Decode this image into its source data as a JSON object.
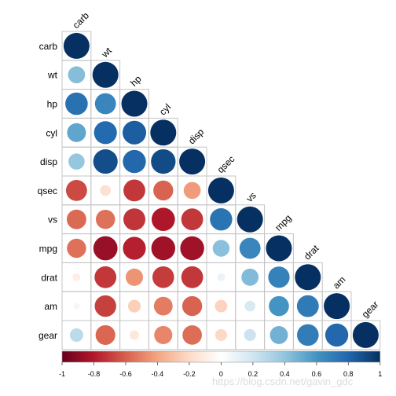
{
  "chart_data": {
    "type": "heatmap",
    "subtype": "correlation-circle-lower-triangle",
    "variables": [
      "carb",
      "wt",
      "hp",
      "cyl",
      "disp",
      "qsec",
      "vs",
      "mpg",
      "drat",
      "am",
      "gear"
    ],
    "matrix": [
      [
        1.0
      ],
      [
        0.43,
        1.0
      ],
      [
        0.75,
        0.66,
        1.0
      ],
      [
        0.53,
        0.78,
        0.83,
        1.0
      ],
      [
        0.39,
        0.89,
        0.79,
        0.9,
        1.0
      ],
      [
        -0.66,
        -0.17,
        -0.71,
        -0.59,
        -0.43,
        1.0
      ],
      [
        -0.57,
        -0.55,
        -0.72,
        -0.81,
        -0.71,
        0.74,
        1.0
      ],
      [
        -0.55,
        -0.87,
        -0.78,
        -0.85,
        -0.85,
        0.42,
        0.66,
        1.0
      ],
      [
        -0.09,
        -0.71,
        -0.45,
        -0.7,
        -0.71,
        0.09,
        0.44,
        0.68,
        1.0
      ],
      [
        0.06,
        -0.69,
        -0.24,
        -0.52,
        -0.59,
        -0.23,
        0.17,
        0.6,
        0.71,
        1.0
      ],
      [
        0.27,
        -0.58,
        -0.13,
        -0.49,
        -0.56,
        -0.21,
        0.21,
        0.48,
        0.7,
        0.79,
        1.0
      ]
    ],
    "colorbar": {
      "range": [
        -1,
        1
      ],
      "ticks": [
        "-1",
        "-0.8",
        "-0.6",
        "-0.4",
        "-0.2",
        "0",
        "0.2",
        "0.4",
        "0.6",
        "0.8",
        "1"
      ],
      "colors": [
        "#67001F",
        "#B2182B",
        "#D6604D",
        "#F4A582",
        "#FDDBC7",
        "#FFFFFF",
        "#D1E5F0",
        "#92C5DE",
        "#4393C3",
        "#2166AC",
        "#053061"
      ]
    },
    "grid": true,
    "legend": "bottom"
  },
  "watermark": "https://blog.csdn.net/gavin_gdc"
}
